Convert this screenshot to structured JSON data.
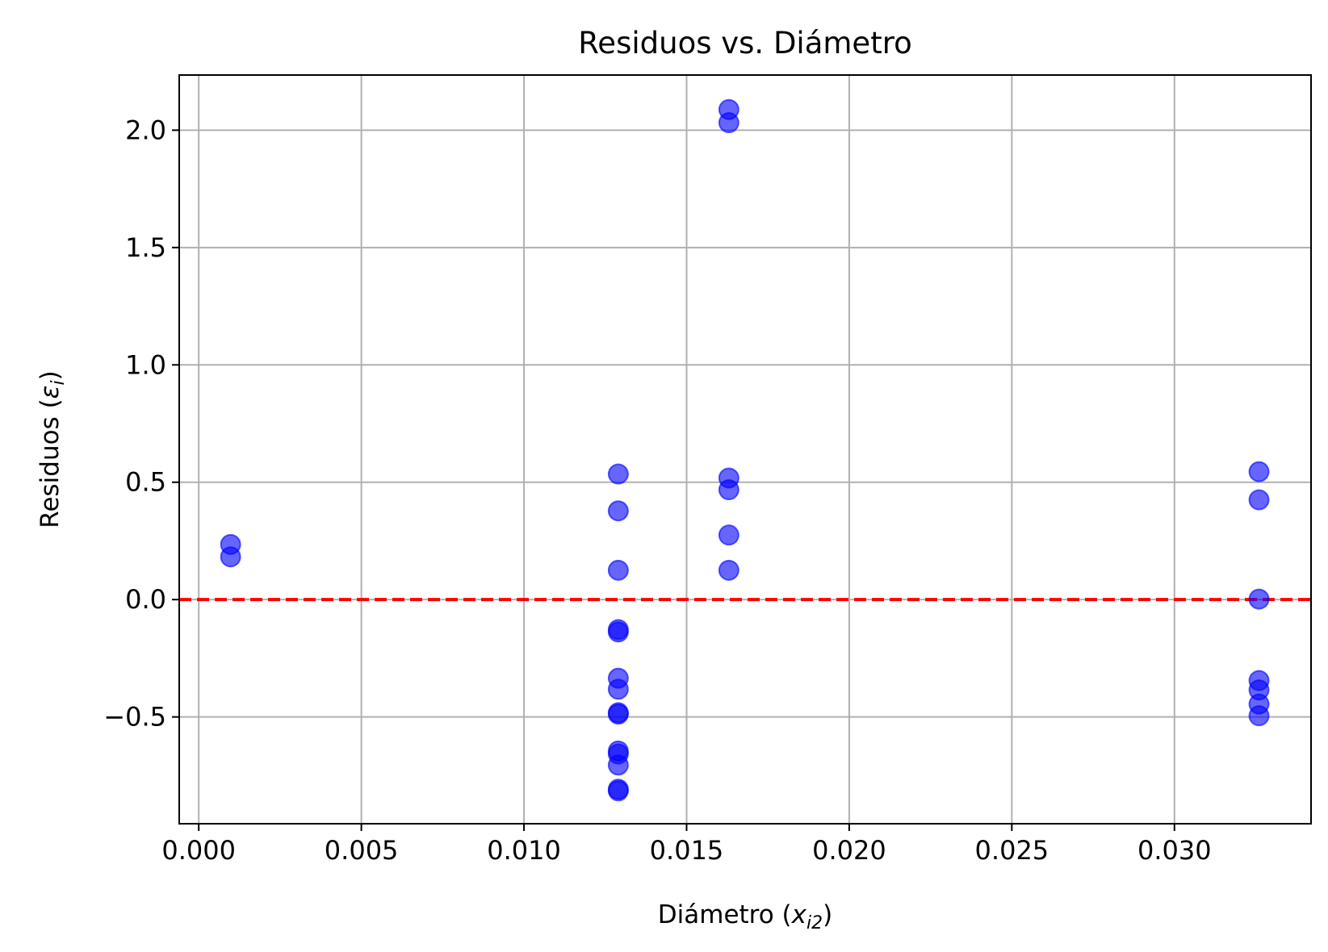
{
  "chart_data": {
    "type": "scatter",
    "title": "Residuos vs. Diámetro",
    "xlabel": {
      "main": "Diámetro (",
      "var": "x",
      "sub": "i2",
      "close": ")"
    },
    "ylabel": {
      "main": "Residuos (",
      "var": "ε",
      "sub": "i",
      "close": ")"
    },
    "xlim": [
      -0.0006,
      0.0342
    ],
    "ylim": [
      -0.955,
      2.235
    ],
    "xticks": [
      0.0,
      0.005,
      0.01,
      0.015,
      0.02,
      0.025,
      0.03
    ],
    "xtick_labels": [
      "0.000",
      "0.005",
      "0.010",
      "0.015",
      "0.020",
      "0.025",
      "0.030"
    ],
    "yticks": [
      -0.5,
      0.0,
      0.5,
      1.0,
      1.5,
      2.0
    ],
    "ytick_labels": [
      "−0.5",
      "0.0",
      "0.5",
      "1.0",
      "1.5",
      "2.0"
    ],
    "grid": true,
    "reference_line": {
      "y": 0.0,
      "color": "#ff0000",
      "style": "dashed"
    },
    "point_color": "#0000ff",
    "point_alpha": 0.6,
    "points": [
      {
        "x": 0.00098,
        "y": 0.235
      },
      {
        "x": 0.00098,
        "y": 0.182
      },
      {
        "x": 0.0129,
        "y": 0.535
      },
      {
        "x": 0.0129,
        "y": 0.378
      },
      {
        "x": 0.0129,
        "y": 0.125
      },
      {
        "x": 0.0129,
        "y": -0.128
      },
      {
        "x": 0.0129,
        "y": -0.138
      },
      {
        "x": 0.0129,
        "y": -0.335
      },
      {
        "x": 0.0129,
        "y": -0.382
      },
      {
        "x": 0.0129,
        "y": -0.482
      },
      {
        "x": 0.0129,
        "y": -0.488
      },
      {
        "x": 0.0129,
        "y": -0.645
      },
      {
        "x": 0.0129,
        "y": -0.658
      },
      {
        "x": 0.0129,
        "y": -0.705
      },
      {
        "x": 0.0129,
        "y": -0.808
      },
      {
        "x": 0.0129,
        "y": -0.815
      },
      {
        "x": 0.0163,
        "y": 2.088
      },
      {
        "x": 0.0163,
        "y": 2.032
      },
      {
        "x": 0.0163,
        "y": 0.518
      },
      {
        "x": 0.0163,
        "y": 0.468
      },
      {
        "x": 0.0163,
        "y": 0.275
      },
      {
        "x": 0.0163,
        "y": 0.125
      },
      {
        "x": 0.0326,
        "y": 0.545
      },
      {
        "x": 0.0326,
        "y": 0.425
      },
      {
        "x": 0.0326,
        "y": 0.002
      },
      {
        "x": 0.0326,
        "y": -0.345
      },
      {
        "x": 0.0326,
        "y": -0.385
      },
      {
        "x": 0.0326,
        "y": -0.445
      },
      {
        "x": 0.0326,
        "y": -0.495
      }
    ]
  }
}
